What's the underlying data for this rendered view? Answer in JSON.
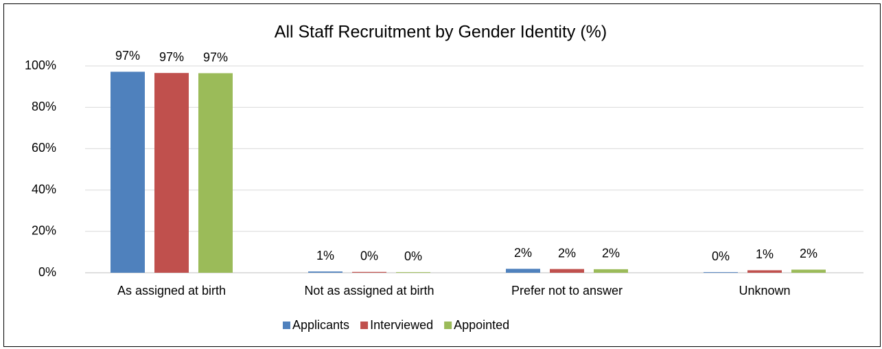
{
  "chart_data": {
    "type": "bar",
    "title": "All Staff Recruitment by Gender Identity (%)",
    "categories": [
      "As assigned at birth",
      "Not as assigned at birth",
      "Prefer not to answer",
      "Unknown"
    ],
    "series": [
      {
        "name": "Applicants",
        "color": "#4f81bd",
        "values": [
          97.2,
          0.6,
          1.9,
          0.3
        ],
        "value_labels": [
          "97%",
          "1%",
          "2%",
          "0%"
        ]
      },
      {
        "name": "Interviewed",
        "color": "#c0504d",
        "values": [
          96.6,
          0.4,
          1.8,
          1.2
        ],
        "value_labels": [
          "97%",
          "0%",
          "2%",
          "1%"
        ]
      },
      {
        "name": "Appointed",
        "color": "#9bbb59",
        "values": [
          96.5,
          0.3,
          1.7,
          1.5
        ],
        "value_labels": [
          "97%",
          "0%",
          "2%",
          "2%"
        ]
      }
    ],
    "ylim": [
      0,
      100
    ],
    "yticks": [
      {
        "value": 0,
        "label": "0%"
      },
      {
        "value": 20,
        "label": "20%"
      },
      {
        "value": 40,
        "label": "40%"
      },
      {
        "value": 60,
        "label": "60%"
      },
      {
        "value": 80,
        "label": "80%"
      },
      {
        "value": 100,
        "label": "100%"
      }
    ],
    "grid": true,
    "legend": "bottom"
  }
}
